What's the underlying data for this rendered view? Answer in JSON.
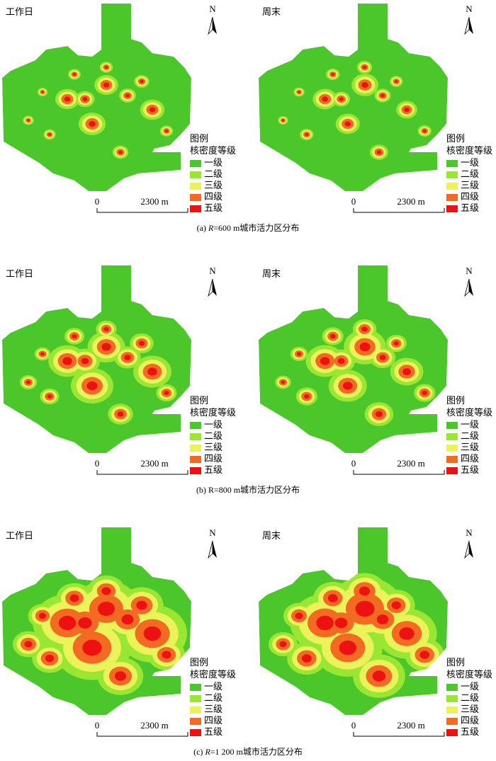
{
  "level_colors": [
    "#4cc72b",
    "#99e633",
    "#ecf25a",
    "#f36a22",
    "#ee1111"
  ],
  "rows": [
    {
      "caption": {
        "label": "(a)",
        "variable": "R",
        "variable_italic": true,
        "text": "=600 m城市活力区分布"
      },
      "panels": [
        {
          "title": "工作日",
          "north": "N",
          "legend_title": "图例",
          "legend_subtitle": "核密度等级",
          "legend_items": [
            "一级",
            "二级",
            "三级",
            "四级",
            "五级"
          ],
          "scale_start": "0",
          "scale_end": "2300 m"
        },
        {
          "title": "周末",
          "north": "N",
          "legend_title": "图例",
          "legend_subtitle": "核密度等级",
          "legend_items": [
            "一级",
            "二级",
            "三级",
            "四级",
            "五级"
          ],
          "scale_start": "0",
          "scale_end": "2300 m"
        }
      ]
    },
    {
      "caption": {
        "label": "(b)",
        "variable": "R",
        "variable_italic": false,
        "text": "=800 m城市活力区分布"
      },
      "panels": [
        {
          "title": "工作日",
          "north": "N",
          "legend_title": "图例",
          "legend_subtitle": "核密度等级",
          "legend_items": [
            "一级",
            "二级",
            "三级",
            "四级",
            "五级"
          ],
          "scale_start": "0",
          "scale_end": "2300 m"
        },
        {
          "title": "周末",
          "north": "N",
          "legend_title": "图例",
          "legend_subtitle": "核密度等级",
          "legend_items": [
            "一级",
            "二级",
            "三级",
            "四级",
            "五级"
          ],
          "scale_start": "0",
          "scale_end": "2300 m"
        }
      ]
    },
    {
      "caption": {
        "label": "(c)",
        "variable": "R",
        "variable_italic": true,
        "text": "=1 200 m城市活力区分布"
      },
      "panels": [
        {
          "title": "工作日",
          "north": "N",
          "legend_title": "图例",
          "legend_subtitle": "核密度等级",
          "legend_items": [
            "一级",
            "二级",
            "三级",
            "四级",
            "五级"
          ],
          "scale_start": "0",
          "scale_end": "2300 m"
        },
        {
          "title": "周末",
          "north": "N",
          "legend_title": "图例",
          "legend_subtitle": "核密度等级",
          "legend_items": [
            "一级",
            "二级",
            "三级",
            "四级",
            "五级"
          ],
          "scale_start": "0",
          "scale_end": "2300 m"
        }
      ]
    }
  ]
}
